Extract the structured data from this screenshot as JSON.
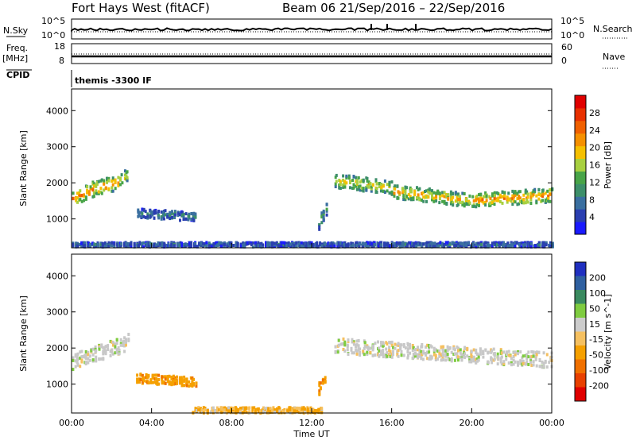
{
  "header": {
    "radar_title": "Fort Hays West (fitACF)",
    "beam_title": "Beam 06  21/Sep/2016 – 22/Sep/2016"
  },
  "top_panels": {
    "nsky_label": "N.Sky",
    "nsky_ticks": [
      "10^5",
      "10^0"
    ],
    "nsearch_label": "N.Search",
    "nsearch_ticks": [
      "10^5",
      "10^0"
    ],
    "freq_label": "Freq.",
    "freq_unit": "[MHz]",
    "freq_ticks": [
      "18",
      "8"
    ],
    "nave_label": "Nave",
    "nave_ticks": [
      "60",
      "0"
    ],
    "cpid_label": "CPID",
    "cpid_value": "themis -3300 IF"
  },
  "colors": {
    "power_scale": [
      "#1a1aff",
      "#2a3fb0",
      "#3a6fa0",
      "#3d8f6a",
      "#48a448",
      "#a8d040",
      "#f5c000",
      "#f59000",
      "#f06000",
      "#e83000",
      "#e00000"
    ],
    "velocity_scale": [
      "#2030c0",
      "#2f60a0",
      "#3a8a60",
      "#7fcc40",
      "#cccccc",
      "#f5c060",
      "#f5a000",
      "#f07000",
      "#e84000",
      "#e00000"
    ],
    "ground_scatter": "#c8c8c8"
  },
  "chart_data": [
    {
      "type": "heatmap",
      "name": "power",
      "ylabel": "Slant Range [km]",
      "x_ticks": [
        "00:00",
        "04:00",
        "08:00",
        "12:00",
        "16:00",
        "20:00",
        "00:00"
      ],
      "y_ticks": [
        "1000",
        "2000",
        "3000",
        "4000"
      ],
      "xlim": [
        0,
        24
      ],
      "ylim": [
        200,
        4600
      ],
      "colorbar": {
        "label": "Power [dB]",
        "ticks": [
          "4",
          "8",
          "12",
          "16",
          "20",
          "24",
          "28"
        ],
        "range": [
          0,
          30
        ]
      },
      "echo_regions": [
        {
          "t_start": 0.0,
          "t_end": 1.2,
          "r_center_start": 1600,
          "r_center_end": 1900,
          "width": 420,
          "power": 22
        },
        {
          "t_start": 1.2,
          "t_end": 2.3,
          "r_center_start": 1900,
          "r_center_end": 2050,
          "width": 400,
          "power": 24
        },
        {
          "t_start": 2.3,
          "t_end": 2.8,
          "r_center_start": 2050,
          "r_center_end": 2300,
          "width": 350,
          "power": 18
        },
        {
          "t_start": 3.2,
          "t_end": 6.2,
          "r_center_start": 1200,
          "r_center_end": 1100,
          "width": 250,
          "power": 8
        },
        {
          "t_start": 12.3,
          "t_end": 12.7,
          "r_center_start": 900,
          "r_center_end": 1300,
          "width": 350,
          "power": 10
        },
        {
          "t_start": 13.1,
          "t_end": 16.0,
          "r_center_start": 2100,
          "r_center_end": 1900,
          "width": 380,
          "power": 18
        },
        {
          "t_start": 16.0,
          "t_end": 20.0,
          "r_center_start": 1800,
          "r_center_end": 1550,
          "width": 380,
          "power": 20
        },
        {
          "t_start": 20.0,
          "t_end": 24.0,
          "r_center_start": 1550,
          "r_center_end": 1700,
          "width": 380,
          "power": 22
        },
        {
          "t_start": 0.0,
          "t_end": 24.0,
          "r_center_start": 330,
          "r_center_end": 330,
          "width": 120,
          "power": 6
        }
      ]
    },
    {
      "type": "heatmap",
      "name": "velocity",
      "ylabel": "Slant Range [km]",
      "xlabel": "Time UT",
      "x_ticks": [
        "00:00",
        "04:00",
        "08:00",
        "12:00",
        "16:00",
        "20:00",
        "00:00"
      ],
      "y_ticks": [
        "1000",
        "2000",
        "3000",
        "4000"
      ],
      "xlim": [
        0,
        24
      ],
      "ylim": [
        200,
        4600
      ],
      "colorbar": {
        "label": "Velocity [m s^-1]",
        "ticks": [
          "200",
          "100",
          "50",
          "15",
          "-15",
          "-50",
          "-100",
          "-200"
        ]
      },
      "echo_regions": [
        {
          "t_start": 0.0,
          "t_end": 2.8,
          "r_center_start": 1650,
          "r_center_end": 2200,
          "width": 450,
          "velocity": 0
        },
        {
          "t_start": 3.2,
          "t_end": 6.2,
          "r_center_start": 1200,
          "r_center_end": 1100,
          "width": 250,
          "velocity": -60
        },
        {
          "t_start": 12.3,
          "t_end": 12.7,
          "r_center_start": 900,
          "r_center_end": 1300,
          "width": 350,
          "velocity": -80
        },
        {
          "t_start": 13.1,
          "t_end": 24.0,
          "r_center_start": 2100,
          "r_center_end": 1700,
          "width": 420,
          "velocity": 0
        },
        {
          "t_start": 6.0,
          "t_end": 12.5,
          "r_center_start": 320,
          "r_center_end": 320,
          "width": 150,
          "velocity": -30
        }
      ]
    }
  ]
}
